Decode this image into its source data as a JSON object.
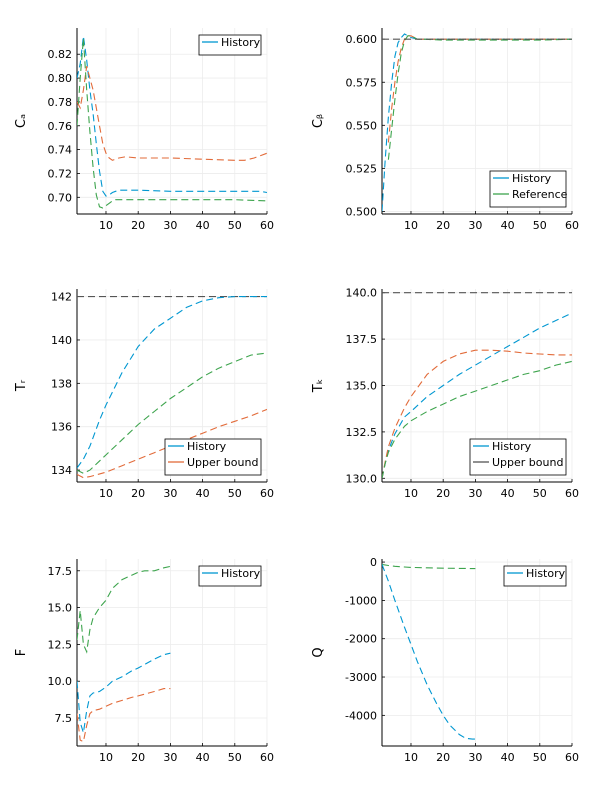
{
  "colors": {
    "blue": "#0097d1",
    "orange": "#e26b3a",
    "green": "#3da44d",
    "gray": "#555555",
    "grid": "#ececec"
  },
  "chart_data": [
    {
      "type": "line",
      "name": "Ca",
      "ylabel": "Cₐ",
      "xlim": [
        1,
        60
      ],
      "ylim": [
        0.686,
        0.842
      ],
      "xticks": [
        10,
        20,
        30,
        40,
        50,
        60
      ],
      "yticks": [
        0.7,
        0.72,
        0.74,
        0.76,
        0.78,
        0.8,
        0.82
      ],
      "ytick_labels": [
        "0.70",
        "0.72",
        "0.74",
        "0.76",
        "0.78",
        "0.80",
        "0.82"
      ],
      "legend": {
        "position": "top-right",
        "entries": [
          {
            "label": "History",
            "color": "blue"
          }
        ]
      },
      "series": [
        {
          "color": "blue",
          "x": [
            1,
            2,
            3,
            4,
            5,
            6,
            7,
            8,
            9,
            10,
            11,
            12,
            13,
            14,
            16,
            20,
            30,
            40,
            50,
            58,
            60
          ],
          "y": [
            0.8,
            0.812,
            0.835,
            0.815,
            0.79,
            0.77,
            0.745,
            0.722,
            0.705,
            0.701,
            0.702,
            0.704,
            0.705,
            0.706,
            0.706,
            0.706,
            0.705,
            0.705,
            0.705,
            0.705,
            0.704
          ]
        },
        {
          "color": "orange",
          "x": [
            1,
            2,
            3,
            4,
            5,
            6,
            7,
            8,
            9,
            10,
            11,
            12,
            13,
            14,
            16,
            20,
            30,
            40,
            50,
            53,
            56,
            58,
            60
          ],
          "y": [
            0.78,
            0.775,
            0.79,
            0.81,
            0.8,
            0.79,
            0.775,
            0.76,
            0.745,
            0.737,
            0.733,
            0.731,
            0.732,
            0.733,
            0.734,
            0.733,
            0.733,
            0.732,
            0.731,
            0.731,
            0.733,
            0.735,
            0.737
          ]
        },
        {
          "color": "green",
          "x": [
            1,
            2,
            3,
            4,
            5,
            6,
            7,
            8,
            9,
            10,
            11,
            12,
            13,
            14,
            16,
            20,
            30,
            40,
            50,
            60
          ],
          "y": [
            0.76,
            0.8,
            0.833,
            0.79,
            0.755,
            0.725,
            0.702,
            0.692,
            0.691,
            0.693,
            0.695,
            0.697,
            0.698,
            0.698,
            0.698,
            0.698,
            0.698,
            0.698,
            0.698,
            0.697
          ]
        }
      ]
    },
    {
      "type": "line",
      "name": "Cbeta",
      "ylabel": "Cᵦ",
      "xlim": [
        1,
        60
      ],
      "ylim": [
        0.4985,
        0.6065
      ],
      "xticks": [
        10,
        20,
        30,
        40,
        50,
        60
      ],
      "yticks": [
        0.5,
        0.525,
        0.55,
        0.575,
        0.6
      ],
      "ytick_labels": [
        "0.500",
        "0.525",
        "0.550",
        "0.575",
        "0.600"
      ],
      "legend": {
        "position": "bottom-right",
        "entries": [
          {
            "label": "History",
            "color": "blue"
          },
          {
            "label": "Reference",
            "color": "green"
          }
        ]
      },
      "series": [
        {
          "color": "blue",
          "x": [
            1,
            2,
            3,
            4,
            5,
            6,
            7,
            8,
            9,
            10,
            11,
            12,
            14,
            20,
            30,
            40,
            50,
            60
          ],
          "y": [
            0.5,
            0.53,
            0.555,
            0.575,
            0.59,
            0.598,
            0.601,
            0.603,
            0.602,
            0.601,
            0.6005,
            0.6,
            0.6,
            0.6,
            0.6,
            0.6,
            0.6,
            0.6
          ]
        },
        {
          "color": "orange",
          "x": [
            3,
            4,
            5,
            6,
            7,
            8,
            9,
            10,
            11,
            12,
            14,
            20,
            30,
            40,
            50,
            60
          ],
          "y": [
            0.54,
            0.56,
            0.575,
            0.587,
            0.595,
            0.6,
            0.602,
            0.602,
            0.601,
            0.6,
            0.6,
            0.6,
            0.6,
            0.6,
            0.6,
            0.6
          ]
        },
        {
          "color": "green",
          "x": [
            3,
            4,
            5,
            6,
            7,
            8,
            9,
            10,
            11,
            12,
            14,
            20,
            30,
            40,
            50,
            60
          ],
          "y": [
            0.53,
            0.548,
            0.565,
            0.58,
            0.592,
            0.599,
            0.602,
            0.602,
            0.601,
            0.6,
            0.6,
            0.5995,
            0.5995,
            0.5995,
            0.5995,
            0.6
          ]
        },
        {
          "color": "gray",
          "x": [
            1,
            60
          ],
          "y": [
            0.6,
            0.6
          ]
        }
      ]
    },
    {
      "type": "line",
      "name": "Tr",
      "ylabel": "Tᵣ",
      "xlim": [
        1,
        60
      ],
      "ylim": [
        133.45,
        142.35
      ],
      "xticks": [
        10,
        20,
        30,
        40,
        50,
        60
      ],
      "yticks": [
        134,
        136,
        138,
        140,
        142
      ],
      "ytick_labels": [
        "134",
        "136",
        "138",
        "140",
        "142"
      ],
      "legend": {
        "position": "bottom-right",
        "entries": [
          {
            "label": "History",
            "color": "blue"
          },
          {
            "label": "Upper bound",
            "color": "orange"
          }
        ]
      },
      "series": [
        {
          "color": "gray",
          "x": [
            1,
            60
          ],
          "y": [
            142,
            142
          ]
        },
        {
          "color": "blue",
          "x": [
            1,
            3,
            5,
            8,
            10,
            15,
            20,
            25,
            30,
            35,
            40,
            45,
            50,
            55,
            60
          ],
          "y": [
            134.1,
            134.5,
            135.1,
            136.3,
            137.0,
            138.5,
            139.7,
            140.5,
            141.0,
            141.5,
            141.8,
            141.95,
            142,
            142,
            142
          ]
        },
        {
          "color": "green",
          "x": [
            1,
            3,
            5,
            10,
            15,
            20,
            25,
            30,
            35,
            40,
            45,
            50,
            55,
            60
          ],
          "y": [
            134.0,
            133.85,
            134.0,
            134.7,
            135.4,
            136.1,
            136.7,
            137.3,
            137.8,
            138.3,
            138.7,
            139.0,
            139.3,
            139.4
          ]
        },
        {
          "color": "orange",
          "x": [
            1,
            3,
            5,
            10,
            15,
            20,
            25,
            30,
            35,
            40,
            45,
            50,
            55,
            60
          ],
          "y": [
            133.8,
            133.65,
            133.7,
            133.9,
            134.2,
            134.5,
            134.8,
            135.1,
            135.4,
            135.7,
            136.0,
            136.25,
            136.5,
            136.8
          ]
        }
      ]
    },
    {
      "type": "line",
      "name": "Tk",
      "ylabel": "Tₖ",
      "xlim": [
        1,
        60
      ],
      "ylim": [
        129.8,
        140.2
      ],
      "xticks": [
        10,
        20,
        30,
        40,
        50,
        60
      ],
      "yticks": [
        130.0,
        132.5,
        135.0,
        137.5,
        140.0
      ],
      "ytick_labels": [
        "130.0",
        "132.5",
        "135.0",
        "137.5",
        "140.0"
      ],
      "legend": {
        "position": "bottom-right",
        "entries": [
          {
            "label": "History",
            "color": "blue"
          },
          {
            "label": "Upper bound",
            "color": "gray"
          }
        ]
      },
      "series": [
        {
          "color": "gray",
          "x": [
            1,
            60
          ],
          "y": [
            140,
            140
          ]
        },
        {
          "color": "blue",
          "x": [
            1,
            2,
            3,
            5,
            8,
            10,
            15,
            20,
            25,
            30,
            35,
            40,
            45,
            50,
            55,
            60
          ],
          "y": [
            130.0,
            130.8,
            131.5,
            132.4,
            133.3,
            133.6,
            134.4,
            135.0,
            135.6,
            136.1,
            136.6,
            137.1,
            137.6,
            138.1,
            138.5,
            138.9
          ]
        },
        {
          "color": "orange",
          "x": [
            1,
            2,
            3,
            5,
            8,
            10,
            15,
            20,
            25,
            30,
            35,
            40,
            45,
            50,
            55,
            60
          ],
          "y": [
            130.0,
            130.9,
            131.7,
            132.7,
            133.8,
            134.4,
            135.6,
            136.3,
            136.7,
            136.9,
            136.9,
            136.85,
            136.75,
            136.7,
            136.65,
            136.65
          ]
        },
        {
          "color": "green",
          "x": [
            1,
            2,
            3,
            5,
            8,
            10,
            15,
            20,
            25,
            30,
            35,
            40,
            45,
            50,
            55,
            60
          ],
          "y": [
            130.0,
            130.8,
            131.4,
            132.1,
            132.8,
            133.1,
            133.6,
            134.0,
            134.4,
            134.7,
            135.0,
            135.3,
            135.6,
            135.8,
            136.1,
            136.3
          ]
        }
      ]
    },
    {
      "type": "line",
      "name": "F",
      "ylabel": "F",
      "xlim": [
        1,
        60
      ],
      "ylim": [
        5.6,
        18.3
      ],
      "xticks": [
        10,
        20,
        30,
        40,
        50,
        60
      ],
      "yticks": [
        7.5,
        10.0,
        12.5,
        15.0,
        17.5
      ],
      "ytick_labels": [
        "7.5",
        "10.0",
        "12.5",
        "15.0",
        "17.5"
      ],
      "legend": {
        "position": "top-right",
        "entries": [
          {
            "label": "History",
            "color": "blue"
          }
        ]
      },
      "series": [
        {
          "color": "green",
          "x": [
            1,
            2,
            3,
            4,
            5,
            6,
            8,
            10,
            12,
            15,
            18,
            20,
            22,
            25,
            28,
            30
          ],
          "y": [
            12.8,
            14.8,
            12.5,
            12.0,
            13.5,
            14.3,
            15.0,
            15.5,
            16.3,
            16.9,
            17.2,
            17.4,
            17.5,
            17.5,
            17.7,
            17.8
          ]
        },
        {
          "color": "blue",
          "x": [
            1,
            2,
            3,
            4,
            5,
            6,
            8,
            10,
            12,
            15,
            18,
            20,
            25,
            28,
            30
          ],
          "y": [
            10.0,
            7.2,
            6.5,
            8.0,
            9.0,
            9.2,
            9.3,
            9.6,
            10.0,
            10.3,
            10.7,
            10.9,
            11.5,
            11.8,
            11.9
          ]
        },
        {
          "color": "orange",
          "x": [
            1,
            2,
            3,
            4,
            5,
            6,
            8,
            10,
            12,
            15,
            18,
            20,
            25,
            28,
            30
          ],
          "y": [
            7.8,
            6.0,
            5.9,
            7.0,
            7.8,
            8.0,
            8.1,
            8.3,
            8.5,
            8.7,
            8.9,
            9.0,
            9.3,
            9.5,
            9.5
          ]
        }
      ]
    },
    {
      "type": "line",
      "name": "Q",
      "ylabel": "Q",
      "xlim": [
        1,
        60
      ],
      "ylim": [
        -4800,
        80
      ],
      "xticks": [
        10,
        20,
        30,
        40,
        50,
        60
      ],
      "yticks": [
        0,
        -1000,
        -2000,
        -3000,
        -4000
      ],
      "ytick_labels": [
        "0",
        "-1000",
        "-2000",
        "-3000",
        "-4000"
      ],
      "legend": {
        "position": "top-right",
        "entries": [
          {
            "label": "History",
            "color": "blue"
          }
        ]
      },
      "series": [
        {
          "color": "green",
          "x": [
            1,
            3,
            5,
            8,
            10,
            15,
            20,
            25,
            30
          ],
          "y": [
            -60,
            -90,
            -110,
            -130,
            -140,
            -150,
            -160,
            -165,
            -170
          ]
        },
        {
          "color": "blue",
          "x": [
            1,
            3,
            5,
            8,
            10,
            12,
            15,
            18,
            20,
            22,
            25,
            27,
            29,
            30
          ],
          "y": [
            -60,
            -500,
            -1000,
            -1700,
            -2150,
            -2600,
            -3200,
            -3700,
            -4000,
            -4250,
            -4500,
            -4600,
            -4620,
            -4620
          ]
        }
      ]
    }
  ]
}
